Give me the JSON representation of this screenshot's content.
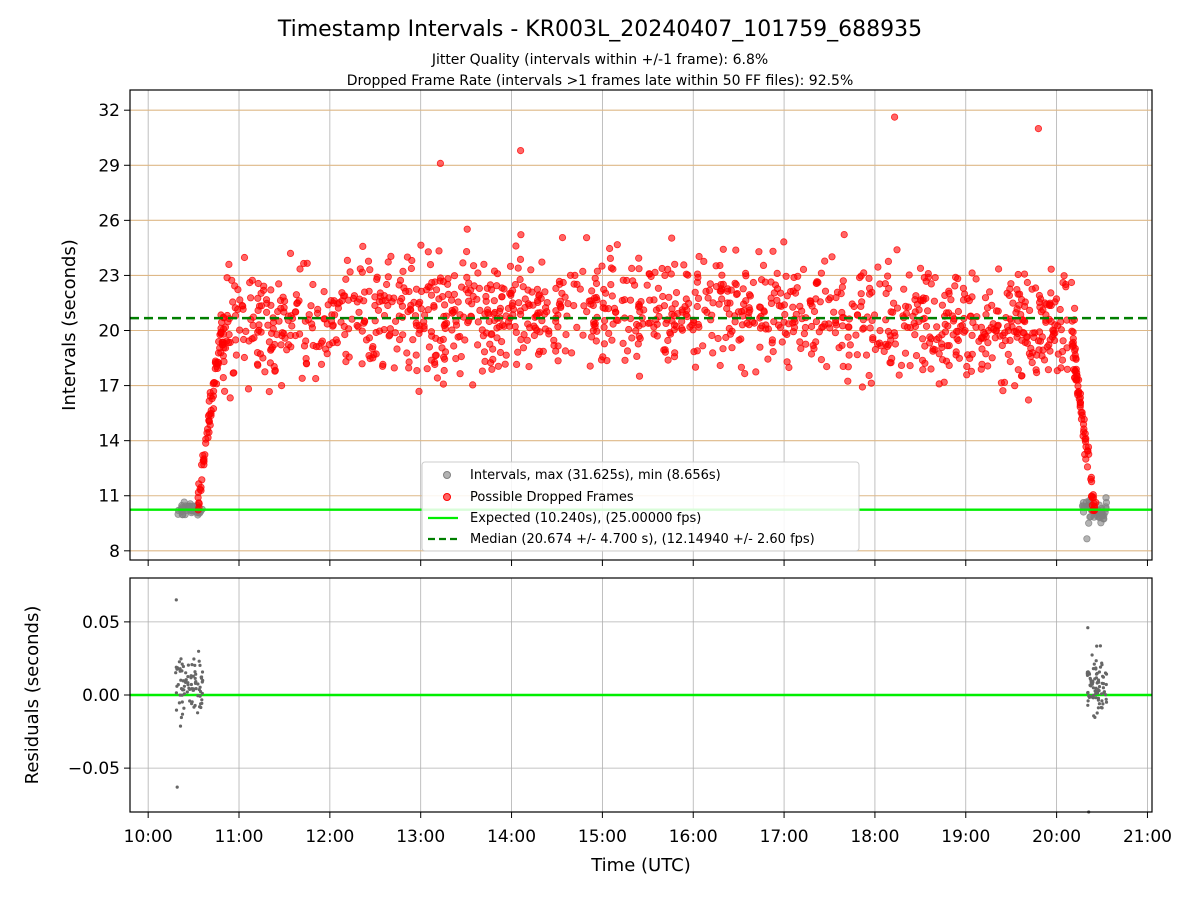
{
  "chart_data": [
    {
      "type": "scatter",
      "title": "Timestamp Intervals - KR003L_20240407_101759_688935",
      "subtitle_lines": [
        "Jitter Quality (intervals within +/-1 frame): 6.8%",
        "Dropped Frame Rate (intervals >1 frames late within 50 FF files): 92.5%"
      ],
      "xlabel": "",
      "ylabel": "Intervals (seconds)",
      "ylim": [
        7.5,
        33.1
      ],
      "yticks": [
        8,
        11,
        14,
        17,
        20,
        23,
        26,
        29,
        32
      ],
      "xlim_hours": [
        9.8,
        21.05
      ],
      "xticks_hours": [
        10,
        11,
        12,
        13,
        14,
        15,
        16,
        17,
        18,
        19,
        20,
        21
      ],
      "hlines_color": "#deb887",
      "vertical_grid": true,
      "legend_position": "lower center",
      "colors": {
        "good": "#808080",
        "dropped": "#ff0000",
        "expected": "#00ee00",
        "median": "#007f00"
      },
      "series": [
        {
          "name": "Intervals, max (31.625s), min (8.656s)",
          "kind": "scatter"
        },
        {
          "name": "Possible Dropped Frames",
          "kind": "scatter"
        },
        {
          "name": "Expected (10.240s), (25.00000 fps)",
          "kind": "hline",
          "value": 10.24
        },
        {
          "name": "Median (20.674 +/- 4.700 s), (12.14940 +/- 2.60 fps)",
          "kind": "hline",
          "value": 20.674
        }
      ],
      "good_points_segments": [
        {
          "t_start": "10:18",
          "t_end": "10:36",
          "n": 40,
          "y_center": 10.25,
          "y_jitter": 0.35
        },
        {
          "t_start": "20:17",
          "t_end": "20:33",
          "n": 45,
          "y_center": 10.2,
          "y_jitter": 0.6
        }
      ],
      "key_points": [
        {
          "t": "10:33",
          "y": 10.9,
          "series": "Possible Dropped Frames"
        },
        {
          "t": "11:34",
          "y": 24.2,
          "series": "Possible Dropped Frames"
        },
        {
          "t": "13:13",
          "y": 29.1,
          "series": "Possible Dropped Frames"
        },
        {
          "t": "14:06",
          "y": 29.8,
          "series": "Possible Dropped Frames"
        },
        {
          "t": "18:13",
          "y": 31.625,
          "series": "Possible Dropped Frames"
        },
        {
          "t": "19:48",
          "y": 31.0,
          "series": "Possible Dropped Frames"
        },
        {
          "t": "20:20",
          "y": 8.656,
          "series": "Intervals, max (31.625s), min (8.656s)"
        }
      ]
    },
    {
      "type": "scatter",
      "xlabel": "Time (UTC)",
      "ylabel": "Residuals (seconds)",
      "ylim": [
        -0.08,
        0.08
      ],
      "yticks": [
        -0.05,
        0.0,
        0.05
      ],
      "ytick_labels": [
        "−0.05",
        "0.00",
        "0.05"
      ],
      "xlim_hours": [
        9.8,
        21.05
      ],
      "xticks_hours": [
        10,
        11,
        12,
        13,
        14,
        15,
        16,
        17,
        18,
        19,
        20,
        21
      ],
      "xtick_labels": [
        "10:00",
        "11:00",
        "12:00",
        "13:00",
        "14:00",
        "15:00",
        "16:00",
        "17:00",
        "18:00",
        "19:00",
        "20:00",
        "21:00"
      ],
      "grid": true,
      "colors": {
        "points": "#666666",
        "zero": "#00ee00"
      },
      "series": [
        {
          "name": "",
          "kind": "scatter",
          "t_start": "10:18",
          "t_end": "10:36",
          "n": 90,
          "y_min": -0.063,
          "y_max": 0.065
        },
        {
          "name": "",
          "kind": "scatter",
          "t_start": "20:20",
          "t_end": "20:33",
          "n": 85,
          "y_min": -0.08,
          "y_max": 0.046
        },
        {
          "name": "",
          "kind": "hline",
          "value": 0.0
        }
      ]
    }
  ]
}
